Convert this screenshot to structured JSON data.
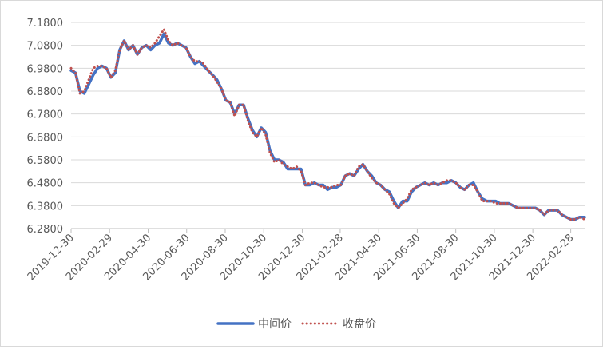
{
  "chart_data": {
    "type": "line",
    "title": "",
    "xlabel": "",
    "ylabel": "",
    "ylim": [
      6.28,
      7.18
    ],
    "y_ticks": [
      "7.1800",
      "7.0800",
      "6.9800",
      "6.8800",
      "6.7800",
      "6.6800",
      "6.5800",
      "6.4800",
      "6.3800",
      "6.2800"
    ],
    "x_ticks": [
      "2019-12-30",
      "2020-02-29",
      "2020-04-30",
      "2020-06-30",
      "2020-08-30",
      "2020-10-30",
      "2020-12-30",
      "2021-02-28",
      "2021-04-30",
      "2021-06-30",
      "2021-08-30",
      "2021-10-30",
      "2021-12-30",
      "2022-02-28"
    ],
    "x_range": [
      "2019-12-30",
      "2022-03-22"
    ],
    "grid": "horizontal",
    "legend_position": "bottom",
    "series": [
      {
        "name": "中间价",
        "style": "solid",
        "color": "#4472C4",
        "points": [
          [
            "2019-12-30",
            6.97
          ],
          [
            "2020-01-06",
            6.96
          ],
          [
            "2020-01-13",
            6.88
          ],
          [
            "2020-01-20",
            6.87
          ],
          [
            "2020-02-03",
            6.95
          ],
          [
            "2020-02-10",
            6.98
          ],
          [
            "2020-02-17",
            6.99
          ],
          [
            "2020-02-24",
            6.98
          ],
          [
            "2020-03-02",
            6.94
          ],
          [
            "2020-03-09",
            6.96
          ],
          [
            "2020-03-16",
            7.06
          ],
          [
            "2020-03-23",
            7.1
          ],
          [
            "2020-03-30",
            7.06
          ],
          [
            "2020-04-06",
            7.08
          ],
          [
            "2020-04-13",
            7.04
          ],
          [
            "2020-04-20",
            7.07
          ],
          [
            "2020-04-27",
            7.08
          ],
          [
            "2020-05-04",
            7.06
          ],
          [
            "2020-05-11",
            7.08
          ],
          [
            "2020-05-18",
            7.09
          ],
          [
            "2020-05-25",
            7.13
          ],
          [
            "2020-06-01",
            7.09
          ],
          [
            "2020-06-08",
            7.08
          ],
          [
            "2020-06-15",
            7.09
          ],
          [
            "2020-06-22",
            7.08
          ],
          [
            "2020-06-29",
            7.07
          ],
          [
            "2020-07-06",
            7.03
          ],
          [
            "2020-07-13",
            7.0
          ],
          [
            "2020-07-20",
            7.01
          ],
          [
            "2020-07-27",
            6.99
          ],
          [
            "2020-08-03",
            6.97
          ],
          [
            "2020-08-10",
            6.95
          ],
          [
            "2020-08-17",
            6.93
          ],
          [
            "2020-08-24",
            6.89
          ],
          [
            "2020-08-31",
            6.84
          ],
          [
            "2020-09-07",
            6.83
          ],
          [
            "2020-09-14",
            6.78
          ],
          [
            "2020-09-21",
            6.82
          ],
          [
            "2020-09-28",
            6.82
          ],
          [
            "2020-10-05",
            6.76
          ],
          [
            "2020-10-12",
            6.71
          ],
          [
            "2020-10-19",
            6.68
          ],
          [
            "2020-10-26",
            6.72
          ],
          [
            "2020-11-02",
            6.7
          ],
          [
            "2020-11-09",
            6.62
          ],
          [
            "2020-11-16",
            6.58
          ],
          [
            "2020-11-23",
            6.58
          ],
          [
            "2020-11-30",
            6.57
          ],
          [
            "2020-12-07",
            6.54
          ],
          [
            "2020-12-14",
            6.54
          ],
          [
            "2020-12-21",
            6.54
          ],
          [
            "2020-12-28",
            6.54
          ],
          [
            "2021-01-04",
            6.47
          ],
          [
            "2021-01-11",
            6.47
          ],
          [
            "2021-01-18",
            6.48
          ],
          [
            "2021-01-25",
            6.47
          ],
          [
            "2021-02-01",
            6.47
          ],
          [
            "2021-02-08",
            6.45
          ],
          [
            "2021-02-15",
            6.46
          ],
          [
            "2021-02-22",
            6.46
          ],
          [
            "2021-03-01",
            6.47
          ],
          [
            "2021-03-08",
            6.51
          ],
          [
            "2021-03-15",
            6.52
          ],
          [
            "2021-03-22",
            6.51
          ],
          [
            "2021-03-29",
            6.54
          ],
          [
            "2021-04-05",
            6.56
          ],
          [
            "2021-04-12",
            6.53
          ],
          [
            "2021-04-19",
            6.51
          ],
          [
            "2021-04-26",
            6.48
          ],
          [
            "2021-05-03",
            6.47
          ],
          [
            "2021-05-10",
            6.45
          ],
          [
            "2021-05-17",
            6.44
          ],
          [
            "2021-05-24",
            6.4
          ],
          [
            "2021-05-31",
            6.37
          ],
          [
            "2021-06-07",
            6.4
          ],
          [
            "2021-06-14",
            6.4
          ],
          [
            "2021-06-21",
            6.44
          ],
          [
            "2021-06-28",
            6.46
          ],
          [
            "2021-07-05",
            6.47
          ],
          [
            "2021-07-12",
            6.48
          ],
          [
            "2021-07-19",
            6.47
          ],
          [
            "2021-07-26",
            6.48
          ],
          [
            "2021-08-02",
            6.47
          ],
          [
            "2021-08-09",
            6.48
          ],
          [
            "2021-08-16",
            6.48
          ],
          [
            "2021-08-23",
            6.49
          ],
          [
            "2021-08-30",
            6.48
          ],
          [
            "2021-09-06",
            6.46
          ],
          [
            "2021-09-13",
            6.45
          ],
          [
            "2021-09-20",
            6.47
          ],
          [
            "2021-09-27",
            6.48
          ],
          [
            "2021-10-04",
            6.44
          ],
          [
            "2021-10-11",
            6.41
          ],
          [
            "2021-10-18",
            6.4
          ],
          [
            "2021-10-25",
            6.4
          ],
          [
            "2021-11-01",
            6.4
          ],
          [
            "2021-11-08",
            6.39
          ],
          [
            "2021-11-15",
            6.39
          ],
          [
            "2021-11-22",
            6.39
          ],
          [
            "2021-11-29",
            6.38
          ],
          [
            "2021-12-06",
            6.37
          ],
          [
            "2021-12-13",
            6.37
          ],
          [
            "2021-12-20",
            6.37
          ],
          [
            "2021-12-27",
            6.37
          ],
          [
            "2022-01-03",
            6.37
          ],
          [
            "2022-01-10",
            6.36
          ],
          [
            "2022-01-17",
            6.34
          ],
          [
            "2022-01-24",
            6.36
          ],
          [
            "2022-01-31",
            6.36
          ],
          [
            "2022-02-07",
            6.36
          ],
          [
            "2022-02-14",
            6.34
          ],
          [
            "2022-02-21",
            6.33
          ],
          [
            "2022-02-28",
            6.32
          ],
          [
            "2022-03-07",
            6.32
          ],
          [
            "2022-03-14",
            6.33
          ],
          [
            "2022-03-22",
            6.33
          ]
        ]
      },
      {
        "name": "收盘价",
        "style": "dotted",
        "color": "#C0504D",
        "points": [
          [
            "2019-12-30",
            6.98
          ],
          [
            "2020-01-06",
            6.96
          ],
          [
            "2020-01-13",
            6.87
          ],
          [
            "2020-01-20",
            6.88
          ],
          [
            "2020-02-03",
            6.98
          ],
          [
            "2020-02-10",
            6.99
          ],
          [
            "2020-02-17",
            6.99
          ],
          [
            "2020-02-24",
            6.98
          ],
          [
            "2020-03-02",
            6.94
          ],
          [
            "2020-03-09",
            6.97
          ],
          [
            "2020-03-16",
            7.06
          ],
          [
            "2020-03-23",
            7.1
          ],
          [
            "2020-03-30",
            7.06
          ],
          [
            "2020-04-06",
            7.08
          ],
          [
            "2020-04-13",
            7.04
          ],
          [
            "2020-04-20",
            7.07
          ],
          [
            "2020-04-27",
            7.08
          ],
          [
            "2020-05-04",
            7.07
          ],
          [
            "2020-05-11",
            7.09
          ],
          [
            "2020-05-18",
            7.12
          ],
          [
            "2020-05-25",
            7.15
          ],
          [
            "2020-06-01",
            7.1
          ],
          [
            "2020-06-08",
            7.08
          ],
          [
            "2020-06-15",
            7.09
          ],
          [
            "2020-06-22",
            7.08
          ],
          [
            "2020-06-29",
            7.07
          ],
          [
            "2020-07-06",
            7.03
          ],
          [
            "2020-07-13",
            7.01
          ],
          [
            "2020-07-20",
            7.01
          ],
          [
            "2020-07-27",
            7.0
          ],
          [
            "2020-08-03",
            6.97
          ],
          [
            "2020-08-10",
            6.95
          ],
          [
            "2020-08-17",
            6.92
          ],
          [
            "2020-08-24",
            6.89
          ],
          [
            "2020-08-31",
            6.84
          ],
          [
            "2020-09-07",
            6.83
          ],
          [
            "2020-09-14",
            6.77
          ],
          [
            "2020-09-21",
            6.82
          ],
          [
            "2020-09-28",
            6.82
          ],
          [
            "2020-10-05",
            6.75
          ],
          [
            "2020-10-12",
            6.7
          ],
          [
            "2020-10-19",
            6.68
          ],
          [
            "2020-10-26",
            6.72
          ],
          [
            "2020-11-02",
            6.69
          ],
          [
            "2020-11-09",
            6.61
          ],
          [
            "2020-11-16",
            6.57
          ],
          [
            "2020-11-23",
            6.58
          ],
          [
            "2020-11-30",
            6.56
          ],
          [
            "2020-12-07",
            6.55
          ],
          [
            "2020-12-14",
            6.54
          ],
          [
            "2020-12-21",
            6.55
          ],
          [
            "2020-12-28",
            6.53
          ],
          [
            "2021-01-04",
            6.47
          ],
          [
            "2021-01-11",
            6.48
          ],
          [
            "2021-01-18",
            6.48
          ],
          [
            "2021-01-25",
            6.47
          ],
          [
            "2021-02-01",
            6.46
          ],
          [
            "2021-02-08",
            6.46
          ],
          [
            "2021-02-15",
            6.46
          ],
          [
            "2021-02-22",
            6.47
          ],
          [
            "2021-03-01",
            6.47
          ],
          [
            "2021-03-08",
            6.51
          ],
          [
            "2021-03-15",
            6.52
          ],
          [
            "2021-03-22",
            6.51
          ],
          [
            "2021-03-29",
            6.55
          ],
          [
            "2021-04-05",
            6.56
          ],
          [
            "2021-04-12",
            6.53
          ],
          [
            "2021-04-19",
            6.5
          ],
          [
            "2021-04-26",
            6.48
          ],
          [
            "2021-05-03",
            6.47
          ],
          [
            "2021-05-10",
            6.45
          ],
          [
            "2021-05-17",
            6.43
          ],
          [
            "2021-05-24",
            6.39
          ],
          [
            "2021-05-31",
            6.37
          ],
          [
            "2021-06-07",
            6.39
          ],
          [
            "2021-06-14",
            6.41
          ],
          [
            "2021-06-21",
            6.45
          ],
          [
            "2021-06-28",
            6.46
          ],
          [
            "2021-07-05",
            6.47
          ],
          [
            "2021-07-12",
            6.48
          ],
          [
            "2021-07-19",
            6.47
          ],
          [
            "2021-07-26",
            6.48
          ],
          [
            "2021-08-02",
            6.47
          ],
          [
            "2021-08-09",
            6.48
          ],
          [
            "2021-08-16",
            6.49
          ],
          [
            "2021-08-23",
            6.49
          ],
          [
            "2021-08-30",
            6.48
          ],
          [
            "2021-09-06",
            6.46
          ],
          [
            "2021-09-13",
            6.45
          ],
          [
            "2021-09-20",
            6.47
          ],
          [
            "2021-09-27",
            6.47
          ],
          [
            "2021-10-04",
            6.44
          ],
          [
            "2021-10-11",
            6.4
          ],
          [
            "2021-10-18",
            6.4
          ],
          [
            "2021-10-25",
            6.4
          ],
          [
            "2021-11-01",
            6.39
          ],
          [
            "2021-11-08",
            6.39
          ],
          [
            "2021-11-15",
            6.39
          ],
          [
            "2021-11-22",
            6.39
          ],
          [
            "2021-11-29",
            6.38
          ],
          [
            "2021-12-06",
            6.37
          ],
          [
            "2021-12-13",
            6.37
          ],
          [
            "2021-12-20",
            6.37
          ],
          [
            "2021-12-27",
            6.37
          ],
          [
            "2022-01-03",
            6.37
          ],
          [
            "2022-01-10",
            6.36
          ],
          [
            "2022-01-17",
            6.34
          ],
          [
            "2022-01-24",
            6.36
          ],
          [
            "2022-01-31",
            6.36
          ],
          [
            "2022-02-07",
            6.36
          ],
          [
            "2022-02-14",
            6.34
          ],
          [
            "2022-02-21",
            6.33
          ],
          [
            "2022-02-28",
            6.32
          ],
          [
            "2022-03-07",
            6.32
          ],
          [
            "2022-03-14",
            6.33
          ],
          [
            "2022-03-22",
            6.32
          ]
        ]
      }
    ]
  }
}
